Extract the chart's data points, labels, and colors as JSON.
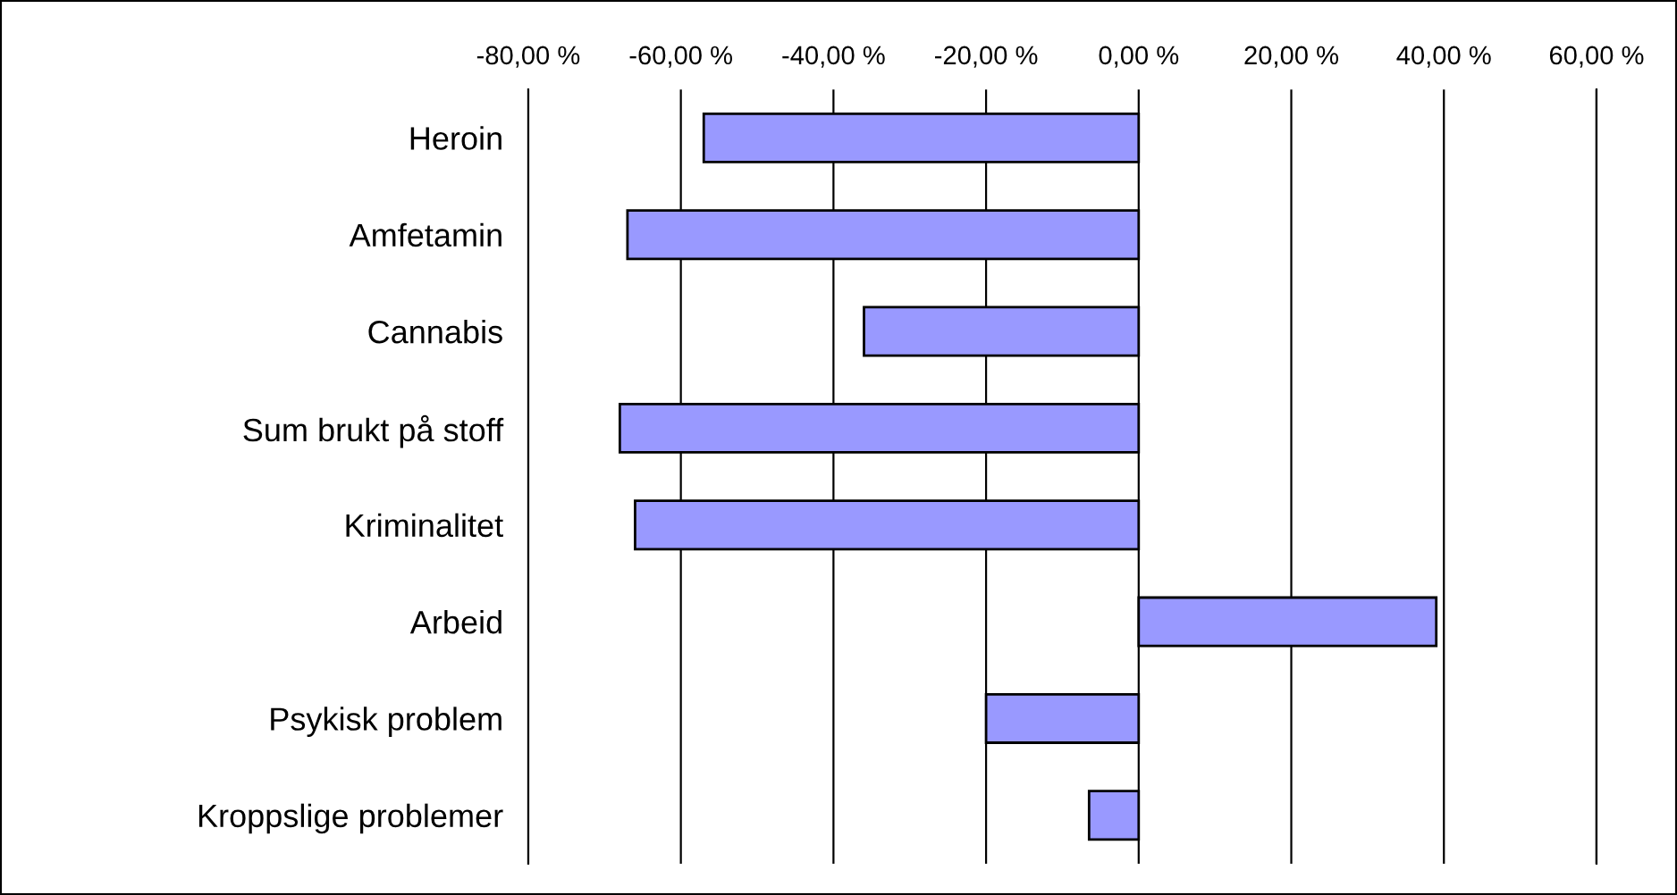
{
  "chart_data": {
    "type": "bar",
    "orientation": "horizontal",
    "categories": [
      "Heroin",
      "Amfetamin",
      "Cannabis",
      "Sum brukt på stoff",
      "Kriminalitet",
      "Arbeid",
      "Psykisk problem",
      "Kroppslige problemer"
    ],
    "values": [
      -57,
      -67,
      -36,
      -68,
      -66,
      39,
      -20,
      -6.5
    ],
    "color": "#9999ff",
    "xlim": [
      -80,
      60
    ],
    "xticks": [
      {
        "value": -80,
        "label": "-80,00 %"
      },
      {
        "value": -60,
        "label": "-60,00 %"
      },
      {
        "value": -40,
        "label": "-40,00 %"
      },
      {
        "value": -20,
        "label": "-20,00 %"
      },
      {
        "value": 0,
        "label": "0,00 %"
      },
      {
        "value": 20,
        "label": "20,00 %"
      },
      {
        "value": 40,
        "label": "40,00 %"
      },
      {
        "value": 60,
        "label": "60,00 %"
      }
    ],
    "grid": "x"
  }
}
